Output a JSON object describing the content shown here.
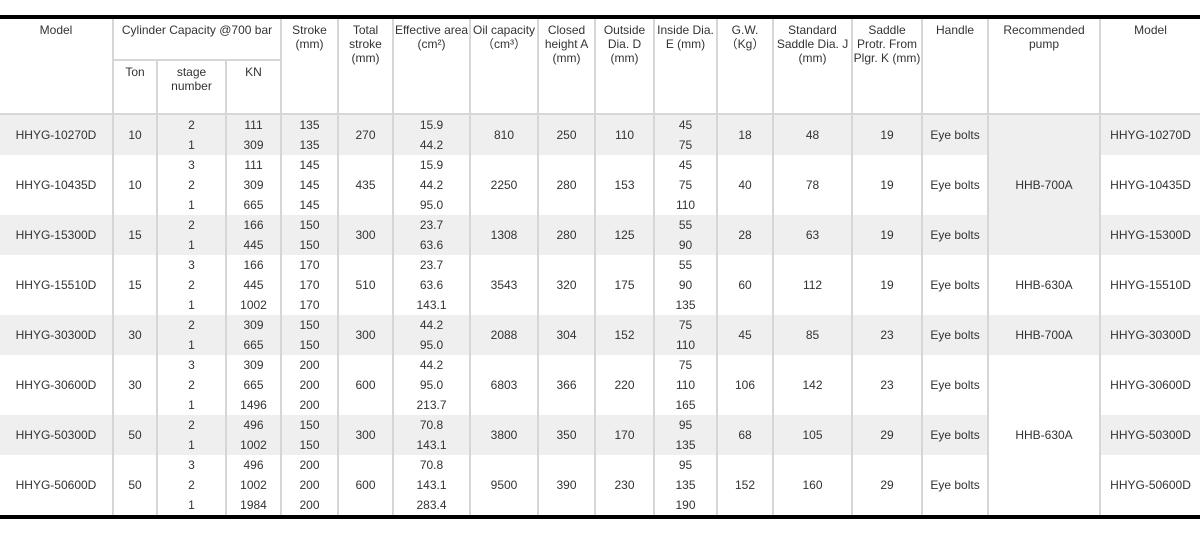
{
  "headers": {
    "model": "Model",
    "capacity": "Cylinder Capacity @700 bar",
    "ton": "Ton",
    "stage": "stage number",
    "kn": "KN",
    "stroke": "Stroke (mm)",
    "total_stroke": "Total stroke (mm)",
    "effective_area": "Effective area (cm²)",
    "oil_capacity": "Oil capacity （cm³）",
    "closed_height": "Closed height A (mm)",
    "outside_dia": "Outside Dia. D (mm)",
    "inside_dia": "Inside Dia. E (mm)",
    "gw": "G.W. （Kg）",
    "saddle_dia": "Standard Saddle Dia. J (mm)",
    "saddle_protr": "Saddle Protr. From Plgr. K (mm)",
    "handle": "Handle",
    "pump": "Recommended pump",
    "model2": "Model"
  },
  "rows": [
    {
      "model": "HHYG-10270D",
      "ton": "10",
      "stage": [
        "2",
        "1"
      ],
      "kn": [
        "111",
        "309"
      ],
      "stroke": [
        "135",
        "135"
      ],
      "total": "270",
      "area": [
        "15.9",
        "44.2"
      ],
      "oil": "810",
      "closed": "250",
      "outside": "110",
      "inside": [
        "45",
        "75"
      ],
      "gw": "18",
      "saddle": "48",
      "protr": "19",
      "handle": "Eye bolts"
    },
    {
      "model": "HHYG-10435D",
      "ton": "10",
      "stage": [
        "3",
        "2",
        "1"
      ],
      "kn": [
        "111",
        "309",
        "665"
      ],
      "stroke": [
        "145",
        "145",
        "145"
      ],
      "total": "435",
      "area": [
        "15.9",
        "44.2",
        "95.0"
      ],
      "oil": "2250",
      "closed": "280",
      "outside": "153",
      "inside": [
        "45",
        "75",
        "110"
      ],
      "gw": "40",
      "saddle": "78",
      "protr": "19",
      "handle": "Eye bolts"
    },
    {
      "model": "HHYG-15300D",
      "ton": "15",
      "stage": [
        "2",
        "1"
      ],
      "kn": [
        "166",
        "445"
      ],
      "stroke": [
        "150",
        "150"
      ],
      "total": "300",
      "area": [
        "23.7",
        "63.6"
      ],
      "oil": "1308",
      "closed": "280",
      "outside": "125",
      "inside": [
        "55",
        "90"
      ],
      "gw": "28",
      "saddle": "63",
      "protr": "19",
      "handle": "Eye bolts"
    },
    {
      "model": "HHYG-15510D",
      "ton": "15",
      "stage": [
        "3",
        "2",
        "1"
      ],
      "kn": [
        "166",
        "445",
        "1002"
      ],
      "stroke": [
        "170",
        "170",
        "170"
      ],
      "total": "510",
      "area": [
        "23.7",
        "63.6",
        "143.1"
      ],
      "oil": "3543",
      "closed": "320",
      "outside": "175",
      "inside": [
        "55",
        "90",
        "135"
      ],
      "gw": "60",
      "saddle": "112",
      "protr": "19",
      "handle": "Eye bolts"
    },
    {
      "model": "HHYG-30300D",
      "ton": "30",
      "stage": [
        "2",
        "1"
      ],
      "kn": [
        "309",
        "665"
      ],
      "stroke": [
        "150",
        "150"
      ],
      "total": "300",
      "area": [
        "44.2",
        "95.0"
      ],
      "oil": "2088",
      "closed": "304",
      "outside": "152",
      "inside": [
        "75",
        "110"
      ],
      "gw": "45",
      "saddle": "85",
      "protr": "23",
      "handle": "Eye bolts"
    },
    {
      "model": "HHYG-30600D",
      "ton": "30",
      "stage": [
        "3",
        "2",
        "1"
      ],
      "kn": [
        "309",
        "665",
        "1496"
      ],
      "stroke": [
        "200",
        "200",
        "200"
      ],
      "total": "600",
      "area": [
        "44.2",
        "95.0",
        "213.7"
      ],
      "oil": "6803",
      "closed": "366",
      "outside": "220",
      "inside": [
        "75",
        "110",
        "165"
      ],
      "gw": "106",
      "saddle": "142",
      "protr": "23",
      "handle": "Eye bolts"
    },
    {
      "model": "HHYG-50300D",
      "ton": "50",
      "stage": [
        "2",
        "1"
      ],
      "kn": [
        "496",
        "1002"
      ],
      "stroke": [
        "150",
        "150"
      ],
      "total": "300",
      "area": [
        "70.8",
        "143.1"
      ],
      "oil": "3800",
      "closed": "350",
      "outside": "170",
      "inside": [
        "95",
        "135"
      ],
      "gw": "68",
      "saddle": "105",
      "protr": "29",
      "handle": "Eye bolts"
    },
    {
      "model": "HHYG-50600D",
      "ton": "50",
      "stage": [
        "3",
        "2",
        "1"
      ],
      "kn": [
        "496",
        "1002",
        "1984"
      ],
      "stroke": [
        "200",
        "200",
        "200"
      ],
      "total": "600",
      "area": [
        "70.8",
        "143.1",
        "283.4"
      ],
      "oil": "9500",
      "closed": "390",
      "outside": "230",
      "inside": [
        "95",
        "135",
        "190"
      ],
      "gw": "152",
      "saddle": "160",
      "protr": "29",
      "handle": "Eye bolts"
    }
  ],
  "pump_groups": [
    {
      "label": "HHB-700A",
      "start": 0,
      "span": 3,
      "shaded": true
    },
    {
      "label": "HHB-630A",
      "start": 3,
      "span": 1,
      "shaded": false
    },
    {
      "label": "HHB-700A",
      "start": 4,
      "span": 1,
      "shaded": true
    },
    {
      "label": "HHB-630A",
      "start": 5,
      "span": 3,
      "shaded": false
    }
  ],
  "colors": {
    "row_shade": "#efefef",
    "border": "#d6d6d6",
    "rule": "#000000",
    "text": "#333333"
  }
}
